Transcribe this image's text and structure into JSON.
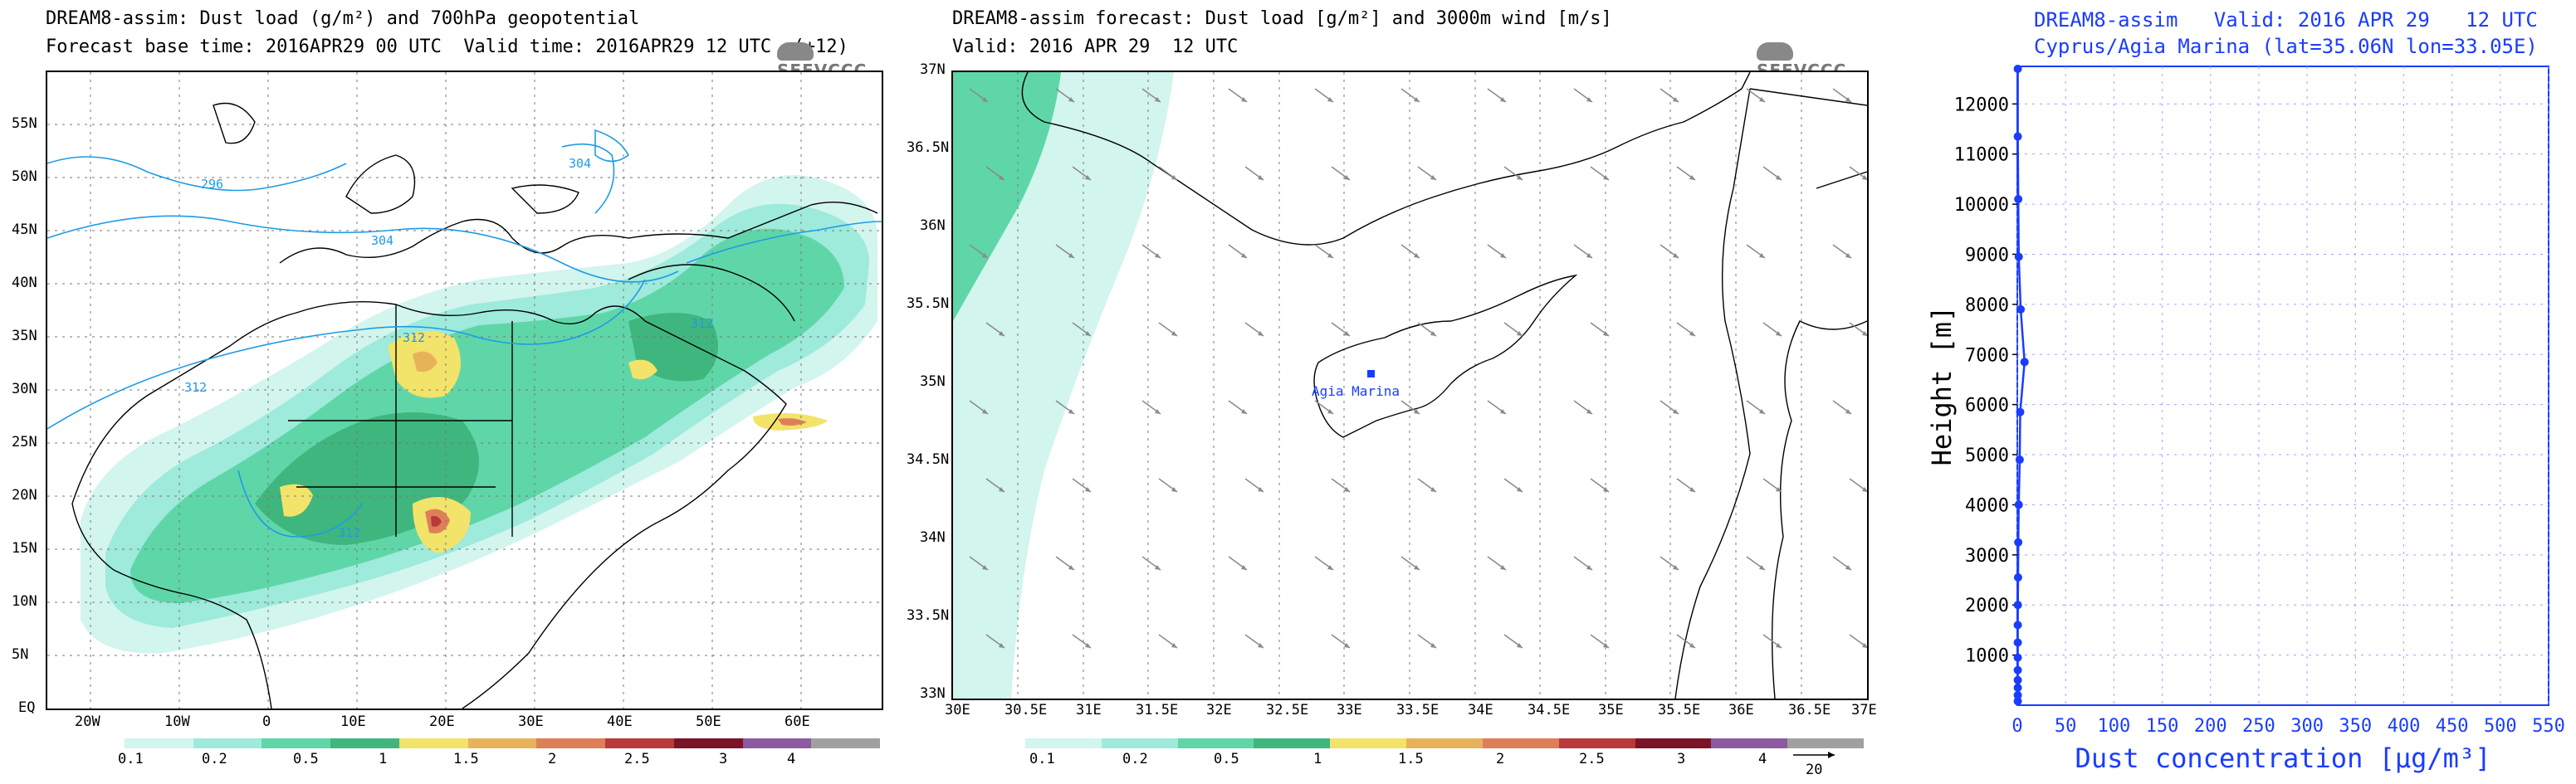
{
  "panel1": {
    "title_line1": "DREAM8-assim: Dust load (g/m²) and 700hPa geopotential",
    "title_line2": "Forecast base time: 2016APR29 00 UTC  Valid time: 2016APR29 12 UTC  (+12)",
    "logo": "SEEVCCC",
    "lat_labels": [
      "55N",
      "50N",
      "45N",
      "40N",
      "35N",
      "30N",
      "25N",
      "20N",
      "15N",
      "10N",
      "5N",
      "EQ"
    ],
    "lon_labels": [
      "20W",
      "10W",
      "0",
      "10E",
      "20E",
      "30E",
      "40E",
      "50E",
      "60E"
    ],
    "contour_labels": [
      "296",
      "304",
      "304",
      "312",
      "312",
      "312",
      "312"
    ],
    "colorbar_labels": [
      "0.1",
      "0.2",
      "0.5",
      "1",
      "1.5",
      "2",
      "2.5",
      "3",
      "4"
    ],
    "colorbar_colors": [
      "#d2f5ee",
      "#9eeadb",
      "#5fd6a8",
      "#3fb67e",
      "#f2e36a",
      "#e8b25a",
      "#df7f58",
      "#b83a3a",
      "#7c1427",
      "#8c5aa0",
      "#a0a0a0"
    ]
  },
  "panel2": {
    "title_line1": "DREAM8-assim forecast: Dust load [g/m²] and 3000m wind [m/s]",
    "title_line2": "Valid: 2016 APR 29  12 UTC",
    "logo": "SEEVCCC",
    "lat_labels": [
      "37N",
      "36.5N",
      "36N",
      "35.5N",
      "35N",
      "34.5N",
      "34N",
      "33.5N",
      "33N"
    ],
    "lon_labels": [
      "30E",
      "30.5E",
      "31E",
      "31.5E",
      "32E",
      "32.5E",
      "33E",
      "33.5E",
      "34E",
      "34.5E",
      "35E",
      "35.5E",
      "36E",
      "36.5E",
      "37E"
    ],
    "station_label": "Agia Marina",
    "colorbar_labels": [
      "0.1",
      "0.2",
      "0.5",
      "1",
      "1.5",
      "2",
      "2.5",
      "3",
      "4"
    ],
    "colorbar_colors": [
      "#d2f5ee",
      "#9eeadb",
      "#5fd6a8",
      "#3fb67e",
      "#f2e36a",
      "#e8b25a",
      "#df7f58",
      "#b83a3a",
      "#7c1427",
      "#8c5aa0",
      "#a0a0a0"
    ],
    "wind_ref_label": "20"
  },
  "chart_data": {
    "type": "line",
    "title": "DREAM8-assim   Valid: 2016 APR 29   12 UTC",
    "subtitle": "Cyprus/Agia Marina (lat=35.06N lon=33.05E)",
    "xlabel": "Dust concentration [μg/m³]",
    "ylabel": "Height [m]",
    "xlim": [
      0,
      550
    ],
    "ylim": [
      0,
      12750
    ],
    "x_ticks": [
      0,
      50,
      100,
      150,
      200,
      250,
      300,
      350,
      400,
      450,
      500,
      550
    ],
    "y_ticks": [
      1000,
      2000,
      3000,
      4000,
      5000,
      6000,
      7000,
      8000,
      9000,
      10000,
      11000,
      12000
    ],
    "color": "#1a3cff",
    "series": [
      {
        "name": "Dust concentration",
        "points": [
          [
            0.5,
            80
          ],
          [
            0.5,
            200
          ],
          [
            0.5,
            350
          ],
          [
            0.5,
            500
          ],
          [
            0.5,
            700
          ],
          [
            0.5,
            950
          ],
          [
            0.5,
            1250
          ],
          [
            0.5,
            1600
          ],
          [
            0.6,
            2000
          ],
          [
            0.8,
            2550
          ],
          [
            1.0,
            3250
          ],
          [
            1.5,
            4000
          ],
          [
            2.5,
            4900
          ],
          [
            3.0,
            5850
          ],
          [
            7.5,
            6850
          ],
          [
            3.5,
            7900
          ],
          [
            1.5,
            8950
          ],
          [
            1.0,
            10100
          ],
          [
            0.5,
            11350
          ],
          [
            0.5,
            12700
          ]
        ]
      }
    ]
  }
}
